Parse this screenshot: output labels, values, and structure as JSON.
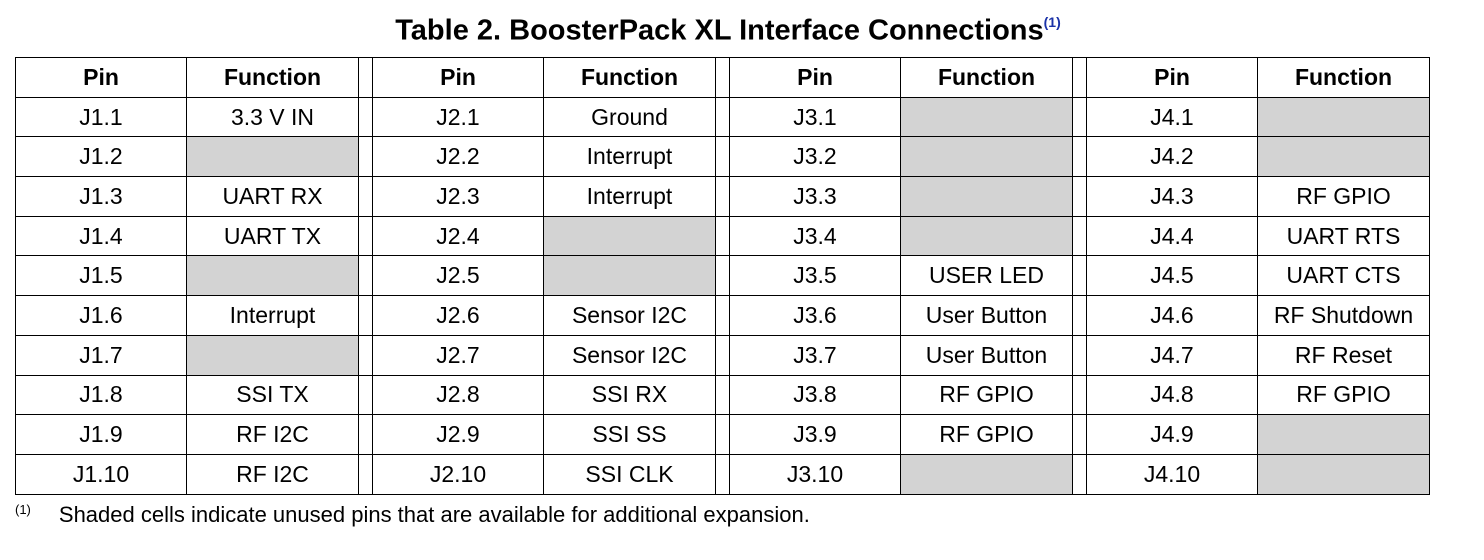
{
  "title": "Table 2. BoosterPack XL Interface Connections",
  "title_note": "(1)",
  "headers": {
    "pin": "Pin",
    "function": "Function"
  },
  "groups": [
    {
      "rows": [
        {
          "pin": "J1.1",
          "function": "3.3 V IN"
        },
        {
          "pin": "J1.2",
          "function": ""
        },
        {
          "pin": "J1.3",
          "function": "UART RX"
        },
        {
          "pin": "J1.4",
          "function": "UART TX"
        },
        {
          "pin": "J1.5",
          "function": ""
        },
        {
          "pin": "J1.6",
          "function": "Interrupt"
        },
        {
          "pin": "J1.7",
          "function": ""
        },
        {
          "pin": "J1.8",
          "function": "SSI TX"
        },
        {
          "pin": "J1.9",
          "function": "RF I2C"
        },
        {
          "pin": "J1.10",
          "function": "RF I2C"
        }
      ]
    },
    {
      "rows": [
        {
          "pin": "J2.1",
          "function": "Ground"
        },
        {
          "pin": "J2.2",
          "function": "Interrupt"
        },
        {
          "pin": "J2.3",
          "function": "Interrupt"
        },
        {
          "pin": "J2.4",
          "function": ""
        },
        {
          "pin": "J2.5",
          "function": ""
        },
        {
          "pin": "J2.6",
          "function": "Sensor I2C"
        },
        {
          "pin": "J2.7",
          "function": "Sensor I2C"
        },
        {
          "pin": "J2.8",
          "function": "SSI RX"
        },
        {
          "pin": "J2.9",
          "function": "SSI SS"
        },
        {
          "pin": "J2.10",
          "function": "SSI CLK"
        }
      ]
    },
    {
      "rows": [
        {
          "pin": "J3.1",
          "function": ""
        },
        {
          "pin": "J3.2",
          "function": ""
        },
        {
          "pin": "J3.3",
          "function": ""
        },
        {
          "pin": "J3.4",
          "function": ""
        },
        {
          "pin": "J3.5",
          "function": "USER LED"
        },
        {
          "pin": "J3.6",
          "function": "User Button"
        },
        {
          "pin": "J3.7",
          "function": "User Button"
        },
        {
          "pin": "J3.8",
          "function": "RF GPIO"
        },
        {
          "pin": "J3.9",
          "function": "RF GPIO"
        },
        {
          "pin": "J3.10",
          "function": ""
        }
      ]
    },
    {
      "rows": [
        {
          "pin": "J4.1",
          "function": ""
        },
        {
          "pin": "J4.2",
          "function": ""
        },
        {
          "pin": "J4.3",
          "function": "RF GPIO"
        },
        {
          "pin": "J4.4",
          "function": "UART RTS"
        },
        {
          "pin": "J4.5",
          "function": "UART CTS"
        },
        {
          "pin": "J4.6",
          "function": "RF Shutdown"
        },
        {
          "pin": "J4.7",
          "function": "RF Reset"
        },
        {
          "pin": "J4.8",
          "function": "RF GPIO"
        },
        {
          "pin": "J4.9",
          "function": ""
        },
        {
          "pin": "J4.10",
          "function": ""
        }
      ]
    }
  ],
  "footnote": {
    "mark": "(1)",
    "text": "Shaded cells indicate unused pins that are available for additional expansion."
  },
  "colors": {
    "shade": "#d3d3d3",
    "note_mark": "#1a32a8"
  }
}
